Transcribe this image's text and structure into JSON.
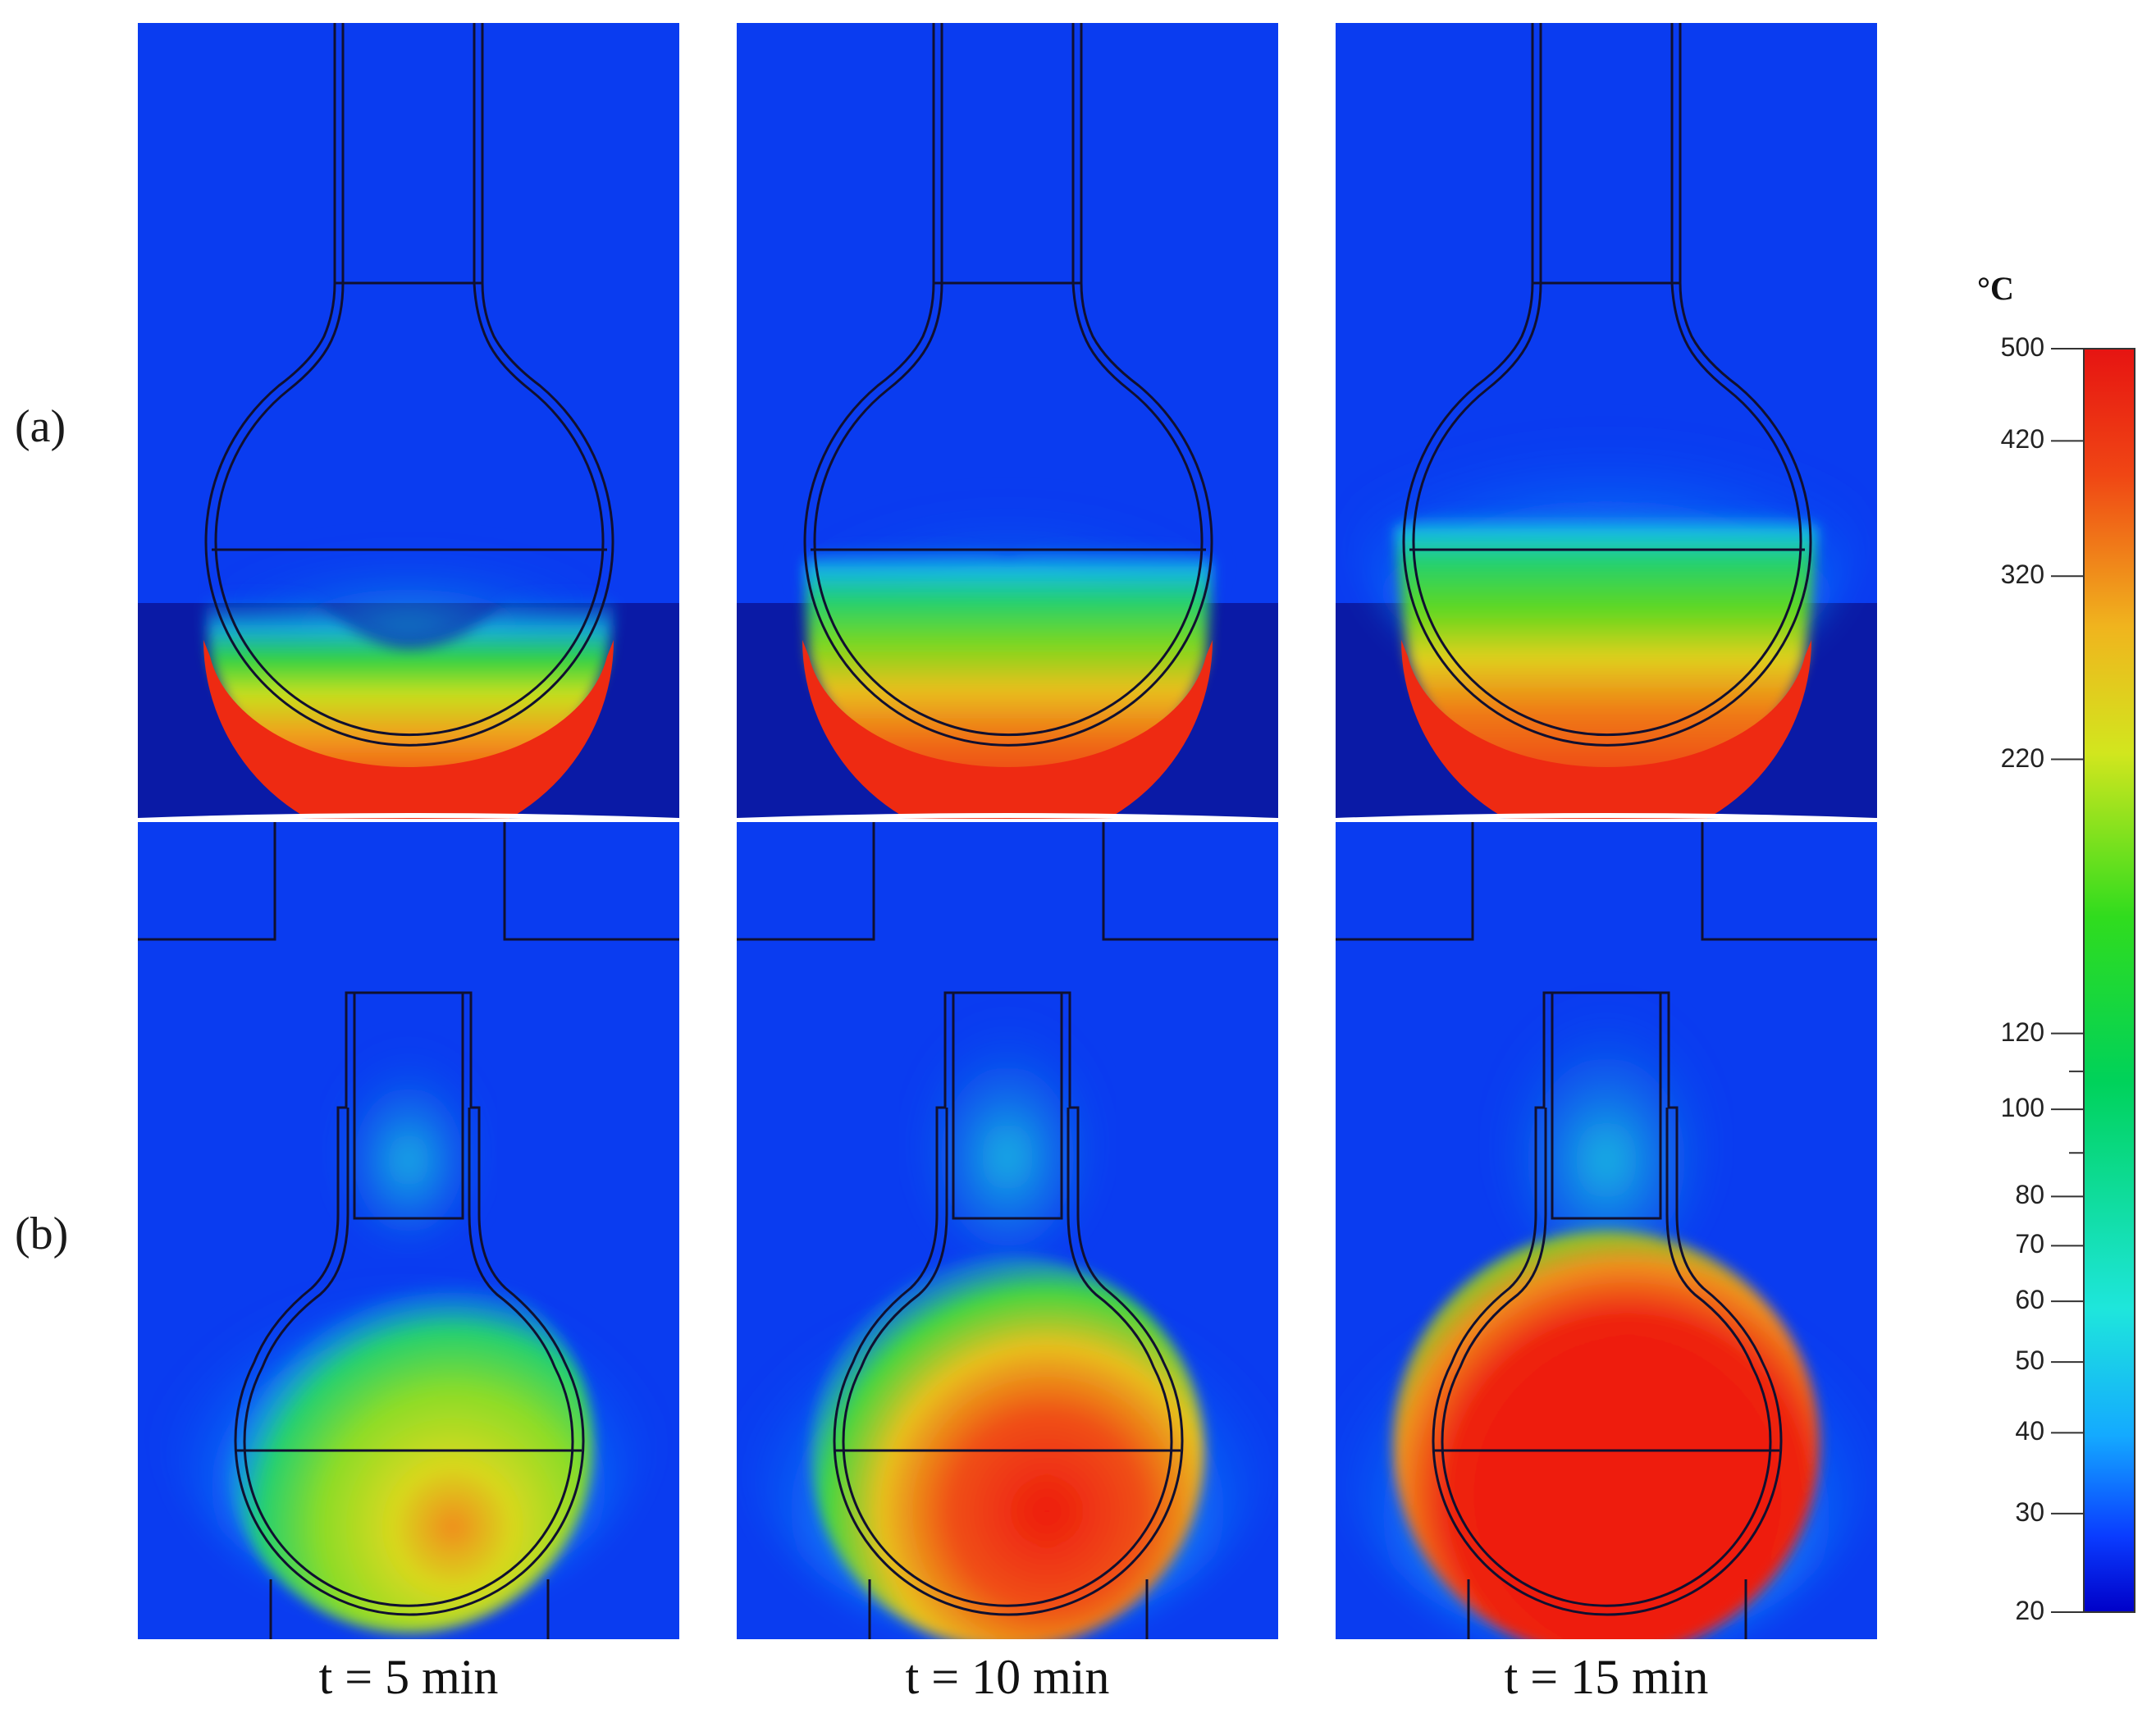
{
  "rows": [
    {
      "label": "(a)"
    },
    {
      "label": "(b)"
    }
  ],
  "times": [
    "t = 5 min",
    "t = 10 min",
    "t = 15 min"
  ],
  "colorbar": {
    "unit": "°C",
    "min": 20,
    "max": 500,
    "ticks": [
      {
        "label": "500",
        "value": 500
      },
      {
        "label": "420",
        "value": 420
      },
      {
        "label": "320",
        "value": 320
      },
      {
        "label": "220",
        "value": 220
      },
      {
        "label": "120",
        "value": 120
      },
      {
        "label": "100",
        "value": 100
      },
      {
        "label": "80",
        "value": 80
      },
      {
        "label": "70",
        "value": 70
      },
      {
        "label": "60",
        "value": 60
      },
      {
        "label": "50",
        "value": 50
      },
      {
        "label": "40",
        "value": 40
      },
      {
        "label": "30",
        "value": 30
      },
      {
        "label": "20",
        "value": 20
      }
    ],
    "minor_ticks": [
      110,
      90
    ],
    "colors": [
      "#0000c8",
      "#0a3cff",
      "#14aaff",
      "#1ee6dc",
      "#00d25a",
      "#30dc1e",
      "#d2e61e",
      "#f0b41e",
      "#f04614",
      "#e61412"
    ]
  },
  "colors": {
    "background_blue": "#0a3cf0",
    "mantle_dark": "#0a1aa6",
    "hot_red": "#ee1c10",
    "outline": "#101030"
  }
}
